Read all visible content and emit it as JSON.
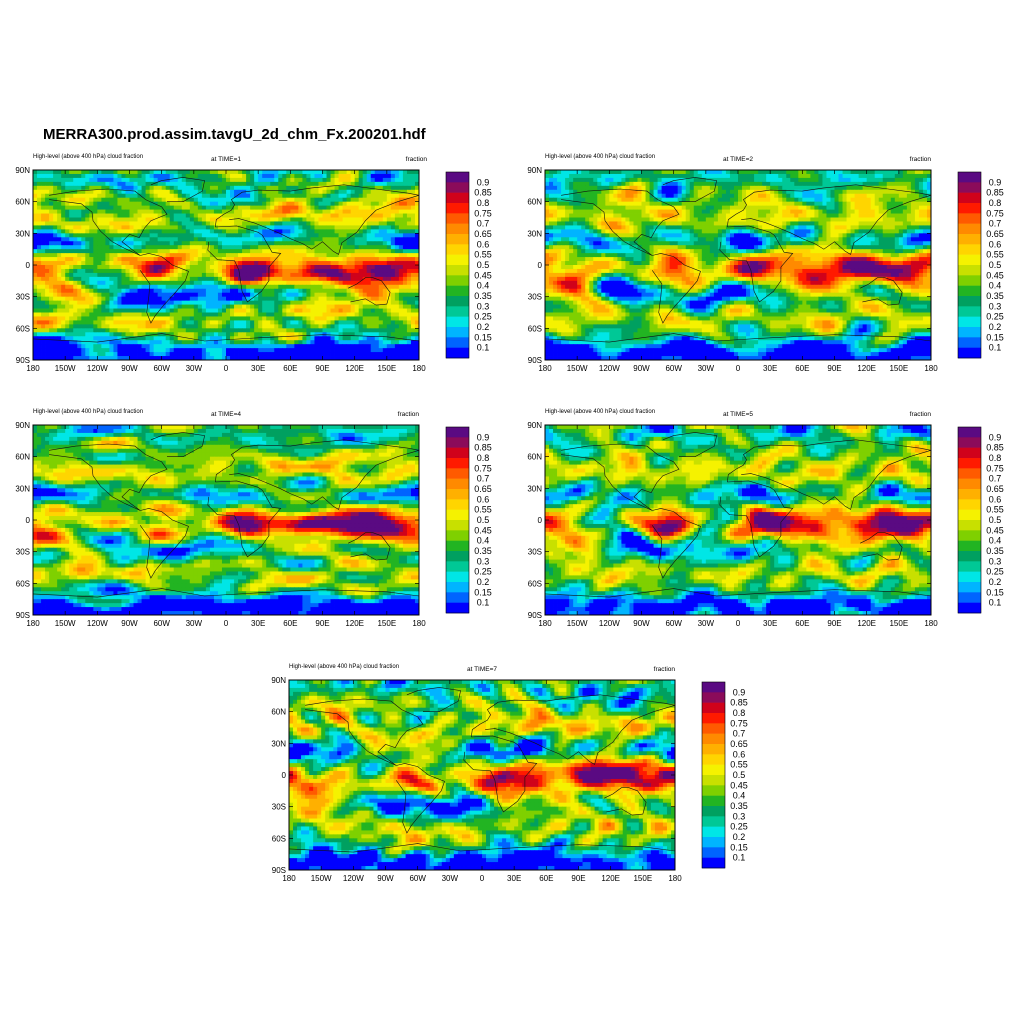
{
  "title": "MERRA300.prod.assim.tavgU_2d_chm_Fx.200201.hdf",
  "variable_label": "High-level (above 400 hPa) cloud fraction",
  "units_label": "fraction",
  "lat_ticks": [
    "90N",
    "60N",
    "30N",
    "0",
    "30S",
    "60S",
    "90S"
  ],
  "lon_ticks": [
    "180",
    "150W",
    "120W",
    "90W",
    "60W",
    "30W",
    "0",
    "30E",
    "60E",
    "90E",
    "120E",
    "150E",
    "180"
  ],
  "colorbar": {
    "labels": [
      "0.9",
      "0.85",
      "0.8",
      "0.75",
      "0.7",
      "0.65",
      "0.6",
      "0.55",
      "0.5",
      "0.45",
      "0.4",
      "0.35",
      "0.3",
      "0.25",
      "0.2",
      "0.15",
      "0.1"
    ],
    "colors": [
      "#5a0a82",
      "#8b0b5a",
      "#d0021b",
      "#ff1a00",
      "#ff5a00",
      "#ff8a00",
      "#ffb000",
      "#ffd500",
      "#f5f200",
      "#c8e000",
      "#7fd000",
      "#22b422",
      "#00a060",
      "#00c896",
      "#00e6e6",
      "#00b4ff",
      "#0064ff",
      "#0000ff"
    ]
  },
  "panels": [
    {
      "time_label": "at TIME=1",
      "seed": 11
    },
    {
      "time_label": "at TIME=2",
      "seed": 23
    },
    {
      "time_label": "at TIME=4",
      "seed": 37
    },
    {
      "time_label": "at TIME=5",
      "seed": 51
    },
    {
      "time_label": "at TIME=7",
      "seed": 73
    }
  ]
}
